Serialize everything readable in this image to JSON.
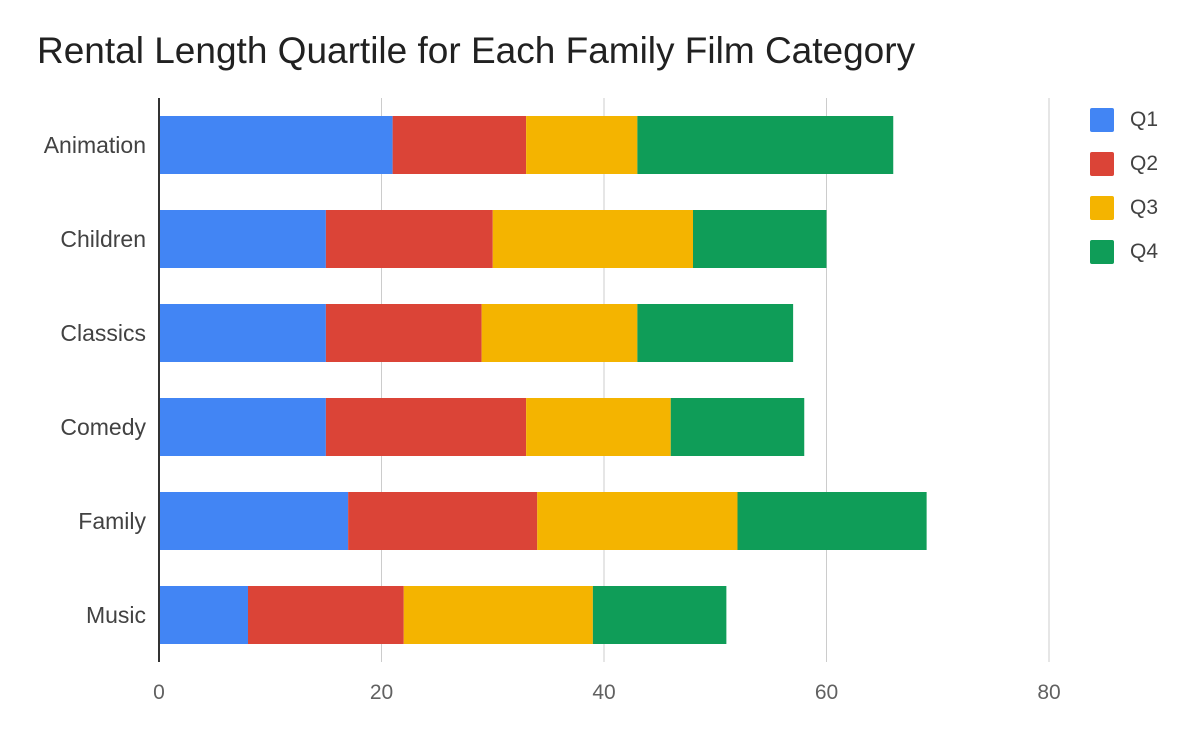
{
  "chart_data": {
    "type": "bar",
    "orientation": "horizontal",
    "stacked": true,
    "title": "Rental Length Quartile for Each Family Film Category",
    "xlabel": "",
    "ylabel": "",
    "categories": [
      "Animation",
      "Children",
      "Classics",
      "Comedy",
      "Family",
      "Music"
    ],
    "series": [
      {
        "name": "Q1",
        "color": "#4285f4",
        "values": [
          21,
          15,
          15,
          15,
          17,
          8
        ]
      },
      {
        "name": "Q2",
        "color": "#db4437",
        "values": [
          12,
          15,
          14,
          18,
          17,
          14
        ]
      },
      {
        "name": "Q3",
        "color": "#f4b400",
        "values": [
          10,
          18,
          14,
          13,
          18,
          17
        ]
      },
      {
        "name": "Q4",
        "color": "#0f9d58",
        "values": [
          23,
          12,
          14,
          12,
          17,
          12
        ]
      }
    ],
    "xlim": [
      0,
      80
    ],
    "xticks": [
      "0",
      "20",
      "40",
      "60",
      "80"
    ],
    "grid": true,
    "legend_position": "right"
  }
}
